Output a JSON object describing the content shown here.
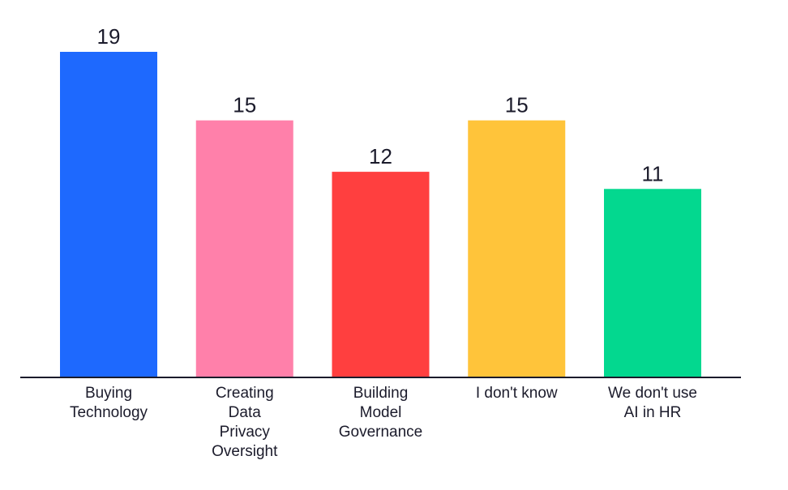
{
  "chart_data": {
    "type": "bar",
    "title": "",
    "xlabel": "",
    "ylabel": "",
    "ylim": [
      0,
      19
    ],
    "grid": false,
    "legend": "none",
    "categories": [
      [
        "Buying",
        "Technology"
      ],
      [
        "Creating",
        "Data",
        "Privacy",
        "Oversight"
      ],
      [
        "Building",
        "Model",
        "Governance"
      ],
      [
        "I don't know"
      ],
      [
        "We don't use",
        "AI in HR"
      ]
    ],
    "values": [
      19,
      15,
      12,
      15,
      11
    ],
    "value_labels": [
      "19",
      "15",
      "12",
      "15",
      "11"
    ],
    "colors": [
      "#1e69fe",
      "#ff80aa",
      "#ff3f3f",
      "#ffc43a",
      "#03d88f"
    ],
    "axis_color": "#1b1b2b",
    "text_color": "#1b1b2b"
  }
}
